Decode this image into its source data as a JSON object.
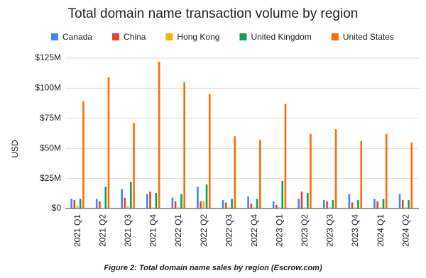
{
  "chart_data": {
    "type": "bar",
    "title": "Total domain name transaction volume by region",
    "y_label": "USD",
    "caption": "Figure 2: Total domain name sales by region (Escrow.com)",
    "categories": [
      "2021 Q1",
      "2021 Q2",
      "2021 Q3",
      "2021 Q4",
      "2022 Q1",
      "2022 Q2",
      "2022 Q3",
      "2022 Q4",
      "2023 Q1",
      "2023 Q2",
      "2023 Q3",
      "2023 Q4",
      "2024 Q1",
      "2024 Q2"
    ],
    "series": [
      {
        "name": "Canada",
        "color": "#4285f4",
        "values": [
          8000000,
          8000000,
          16000000,
          12000000,
          9000000,
          18000000,
          7000000,
          10000000,
          6000000,
          8000000,
          7000000,
          12000000,
          8000000,
          12000000
        ]
      },
      {
        "name": "China",
        "color": "#db4437",
        "values": [
          7000000,
          6000000,
          9000000,
          14000000,
          6000000,
          6000000,
          5000000,
          4000000,
          3000000,
          14000000,
          6000000,
          5000000,
          6000000,
          7000000
        ]
      },
      {
        "name": "Hong Kong",
        "color": "#f4b400",
        "values": [
          2000000,
          500000,
          2000000,
          1000000,
          1000000,
          6000000,
          1000000,
          1000000,
          1000000,
          1000000,
          1000000,
          1000000,
          1000000,
          1000000
        ]
      },
      {
        "name": "United Kingdom",
        "color": "#0f9d58",
        "values": [
          8000000,
          18000000,
          22000000,
          13000000,
          12000000,
          20000000,
          8000000,
          8000000,
          23000000,
          13000000,
          7000000,
          7000000,
          8000000,
          7000000
        ]
      },
      {
        "name": "United States",
        "color": "#ff6d01",
        "values": [
          89000000,
          109000000,
          71000000,
          122000000,
          105000000,
          95000000,
          60000000,
          57000000,
          87000000,
          62000000,
          66000000,
          56000000,
          62000000,
          55000000
        ]
      }
    ],
    "ylim": [
      0,
      125000000
    ],
    "yticks": [
      {
        "value": 0,
        "label": "$0"
      },
      {
        "value": 25000000,
        "label": "$25M"
      },
      {
        "value": 50000000,
        "label": "$50M"
      },
      {
        "value": 75000000,
        "label": "$75M"
      },
      {
        "value": 100000000,
        "label": "$100M"
      },
      {
        "value": 125000000,
        "label": "$125M"
      }
    ],
    "grid": true
  }
}
